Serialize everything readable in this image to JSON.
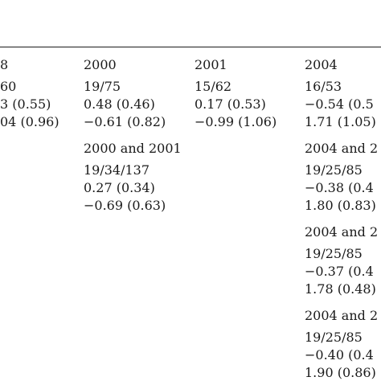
{
  "columns": [
    {
      "header": "8",
      "blocks": [
        {
          "lines": [
            "60",
            "3 (0.55)",
            "04 (0.96)"
          ]
        }
      ]
    },
    {
      "header": "2000",
      "blocks": [
        {
          "lines": [
            "19/75",
            "0.48 (0.46)",
            "−0.61 (0.82)"
          ]
        },
        {
          "title": "2000 and 2001",
          "lines": [
            "19/34/137",
            "0.27 (0.34)",
            "−0.69 (0.63)"
          ]
        }
      ]
    },
    {
      "header": "2001",
      "blocks": [
        {
          "lines": [
            "15/62",
            "0.17 (0.53)",
            "−0.99 (1.06)"
          ]
        }
      ]
    },
    {
      "header": "2004",
      "blocks": [
        {
          "lines": [
            "16/53",
            "−0.54 (0.5",
            "1.71 (1.05)"
          ]
        },
        {
          "title": "2004 and 2",
          "lines": [
            "19/25/85",
            "−0.38 (0.4",
            "1.80 (0.83)"
          ]
        },
        {
          "title": "2004 and 2",
          "lines": [
            "19/25/85",
            "−0.37 (0.4",
            "1.78 (0.48)"
          ]
        },
        {
          "title": "2004 and 2",
          "lines": [
            "19/25/85",
            "−0.40 (0.4",
            "1.90 (0.86)"
          ]
        }
      ]
    }
  ]
}
